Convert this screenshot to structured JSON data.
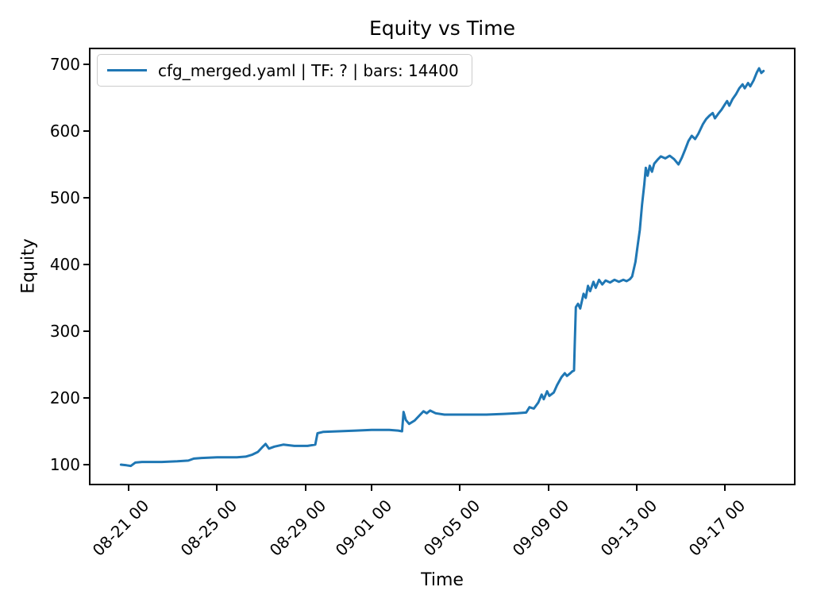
{
  "figure": {
    "background": "#ffffff",
    "text_color": "#000000"
  },
  "chart_data": {
    "type": "line",
    "title": "Equity vs Time",
    "xlabel": "Time",
    "ylabel": "Equity",
    "grid": false,
    "legend_position": "upper left",
    "legend": {
      "label": "cfg_merged.yaml | TF: ? | bars: 14400",
      "line_color": "#1f77b4"
    },
    "x_unit": "days since 08-21 00:00",
    "xlim": [
      -1.8,
      30.2
    ],
    "ylim": [
      69,
      725
    ],
    "x_ticks": [
      {
        "d": 0,
        "label": "08-21 00"
      },
      {
        "d": 4,
        "label": "08-25 00"
      },
      {
        "d": 8,
        "label": "08-29 00"
      },
      {
        "d": 11,
        "label": "09-01 00"
      },
      {
        "d": 15,
        "label": "09-05 00"
      },
      {
        "d": 19,
        "label": "09-09 00"
      },
      {
        "d": 23,
        "label": "09-13 00"
      },
      {
        "d": 27,
        "label": "09-17 00"
      }
    ],
    "y_ticks": [
      100,
      200,
      300,
      400,
      500,
      600,
      700
    ],
    "series": [
      {
        "name": "cfg_merged.yaml | TF: ? | bars: 14400",
        "color": "#1f77b4",
        "line_width": 3,
        "points": [
          [
            -0.35,
            100
          ],
          [
            -0.1,
            99
          ],
          [
            0.1,
            98
          ],
          [
            0.3,
            103
          ],
          [
            0.6,
            104
          ],
          [
            1.5,
            104
          ],
          [
            2.2,
            105
          ],
          [
            2.7,
            106
          ],
          [
            2.95,
            109
          ],
          [
            3.3,
            110
          ],
          [
            4.0,
            111
          ],
          [
            4.9,
            111
          ],
          [
            5.3,
            112
          ],
          [
            5.6,
            115
          ],
          [
            5.85,
            119
          ],
          [
            6.05,
            126
          ],
          [
            6.2,
            131
          ],
          [
            6.35,
            124
          ],
          [
            6.6,
            127
          ],
          [
            7.0,
            130
          ],
          [
            7.5,
            128
          ],
          [
            8.1,
            128
          ],
          [
            8.45,
            130
          ],
          [
            8.55,
            147
          ],
          [
            8.8,
            149
          ],
          [
            9.5,
            150
          ],
          [
            10.3,
            151
          ],
          [
            11.0,
            152
          ],
          [
            11.8,
            152
          ],
          [
            12.2,
            151
          ],
          [
            12.38,
            150
          ],
          [
            12.45,
            179
          ],
          [
            12.55,
            167
          ],
          [
            12.7,
            161
          ],
          [
            12.95,
            166
          ],
          [
            13.15,
            173
          ],
          [
            13.35,
            180
          ],
          [
            13.5,
            177
          ],
          [
            13.65,
            181
          ],
          [
            13.9,
            177
          ],
          [
            14.3,
            175
          ],
          [
            15.2,
            175
          ],
          [
            16.2,
            175
          ],
          [
            17.0,
            176
          ],
          [
            17.6,
            177
          ],
          [
            18.0,
            178
          ],
          [
            18.15,
            186
          ],
          [
            18.35,
            184
          ],
          [
            18.55,
            193
          ],
          [
            18.7,
            205
          ],
          [
            18.8,
            198
          ],
          [
            18.95,
            210
          ],
          [
            19.05,
            203
          ],
          [
            19.25,
            208
          ],
          [
            19.4,
            219
          ],
          [
            19.6,
            231
          ],
          [
            19.75,
            237
          ],
          [
            19.85,
            233
          ],
          [
            20.0,
            237
          ],
          [
            20.1,
            240
          ],
          [
            20.17,
            241
          ],
          [
            20.2,
            280
          ],
          [
            20.25,
            336
          ],
          [
            20.35,
            341
          ],
          [
            20.45,
            334
          ],
          [
            20.6,
            356
          ],
          [
            20.7,
            350
          ],
          [
            20.8,
            368
          ],
          [
            20.9,
            360
          ],
          [
            21.05,
            374
          ],
          [
            21.15,
            365
          ],
          [
            21.3,
            377
          ],
          [
            21.45,
            370
          ],
          [
            21.6,
            376
          ],
          [
            21.8,
            373
          ],
          [
            22.0,
            377
          ],
          [
            22.2,
            374
          ],
          [
            22.4,
            377
          ],
          [
            22.55,
            375
          ],
          [
            22.7,
            378
          ],
          [
            22.8,
            382
          ],
          [
            22.95,
            404
          ],
          [
            23.05,
            428
          ],
          [
            23.15,
            452
          ],
          [
            23.25,
            490
          ],
          [
            23.35,
            520
          ],
          [
            23.42,
            545
          ],
          [
            23.5,
            533
          ],
          [
            23.6,
            548
          ],
          [
            23.7,
            539
          ],
          [
            23.8,
            551
          ],
          [
            23.95,
            557
          ],
          [
            24.1,
            562
          ],
          [
            24.3,
            559
          ],
          [
            24.5,
            563
          ],
          [
            24.7,
            558
          ],
          [
            24.9,
            550
          ],
          [
            25.05,
            560
          ],
          [
            25.2,
            572
          ],
          [
            25.35,
            585
          ],
          [
            25.5,
            593
          ],
          [
            25.65,
            588
          ],
          [
            25.8,
            596
          ],
          [
            26.0,
            610
          ],
          [
            26.15,
            618
          ],
          [
            26.3,
            623
          ],
          [
            26.45,
            627
          ],
          [
            26.55,
            619
          ],
          [
            26.7,
            626
          ],
          [
            26.85,
            632
          ],
          [
            27.0,
            640
          ],
          [
            27.1,
            645
          ],
          [
            27.2,
            638
          ],
          [
            27.35,
            648
          ],
          [
            27.5,
            655
          ],
          [
            27.65,
            664
          ],
          [
            27.8,
            670
          ],
          [
            27.9,
            664
          ],
          [
            28.05,
            672
          ],
          [
            28.15,
            667
          ],
          [
            28.3,
            676
          ],
          [
            28.45,
            688
          ],
          [
            28.55,
            694
          ],
          [
            28.65,
            687
          ],
          [
            28.75,
            690
          ]
        ]
      }
    ]
  }
}
